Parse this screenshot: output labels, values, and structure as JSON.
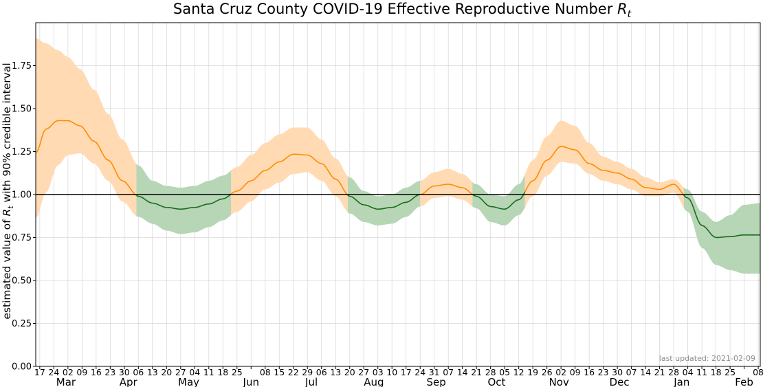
{
  "chart_data": {
    "type": "area",
    "title": "Santa Cruz County COVID-19 Effective Reproductive Number",
    "title_symbol": "R",
    "title_symbol_sub": "t",
    "ylabel_prefix": "estimated value of",
    "ylabel_symbol": "R",
    "ylabel_symbol_sub": "t",
    "ylabel_suffix": "with 90% credible interval",
    "footnote": "last updated: 2021-02-09",
    "ylim": [
      0,
      2.0
    ],
    "yticks": [
      "0.00",
      "0.25",
      "0.50",
      "0.75",
      "1.00",
      "1.25",
      "1.50",
      "1.75"
    ],
    "ytick_values": [
      0,
      0.25,
      0.5,
      0.75,
      1.0,
      1.25,
      1.5,
      1.75
    ],
    "xlim": [
      "2020-02-15",
      "2021-02-09"
    ],
    "reference_line": 1.0,
    "colors": {
      "above_line": "#ff8c00",
      "above_band": "#ffdab3",
      "below_line": "#1a6b1a",
      "below_band": "#b6d6b6",
      "reference": "#000000",
      "grid": "#d9d9d9"
    },
    "grid": true,
    "x_ticks": [
      {
        "date": "2020-02-17",
        "label": "17"
      },
      {
        "date": "2020-02-24",
        "label": "24"
      },
      {
        "date": "2020-03-02",
        "label": "02"
      },
      {
        "date": "2020-03-09",
        "label": "09"
      },
      {
        "date": "2020-03-16",
        "label": "16"
      },
      {
        "date": "2020-03-23",
        "label": "23"
      },
      {
        "date": "2020-03-30",
        "label": "30"
      },
      {
        "date": "2020-04-06",
        "label": "06"
      },
      {
        "date": "2020-04-13",
        "label": "13"
      },
      {
        "date": "2020-04-20",
        "label": "20"
      },
      {
        "date": "2020-04-27",
        "label": "27"
      },
      {
        "date": "2020-05-04",
        "label": "04"
      },
      {
        "date": "2020-05-11",
        "label": "11"
      },
      {
        "date": "2020-05-18",
        "label": "18"
      },
      {
        "date": "2020-05-25",
        "label": "25"
      },
      {
        "date": "2020-06-01",
        "label": ""
      },
      {
        "date": "2020-06-08",
        "label": "08"
      },
      {
        "date": "2020-06-15",
        "label": "15"
      },
      {
        "date": "2020-06-22",
        "label": "22"
      },
      {
        "date": "2020-06-29",
        "label": "29"
      },
      {
        "date": "2020-07-06",
        "label": "06"
      },
      {
        "date": "2020-07-13",
        "label": "13"
      },
      {
        "date": "2020-07-20",
        "label": "20"
      },
      {
        "date": "2020-07-27",
        "label": "27"
      },
      {
        "date": "2020-08-03",
        "label": "03"
      },
      {
        "date": "2020-08-10",
        "label": "10"
      },
      {
        "date": "2020-08-17",
        "label": "17"
      },
      {
        "date": "2020-08-24",
        "label": "24"
      },
      {
        "date": "2020-08-31",
        "label": "31"
      },
      {
        "date": "2020-09-07",
        "label": "07"
      },
      {
        "date": "2020-09-14",
        "label": "14"
      },
      {
        "date": "2020-09-21",
        "label": "21"
      },
      {
        "date": "2020-09-28",
        "label": "28"
      },
      {
        "date": "2020-10-05",
        "label": "05"
      },
      {
        "date": "2020-10-12",
        "label": "12"
      },
      {
        "date": "2020-10-19",
        "label": "19"
      },
      {
        "date": "2020-10-26",
        "label": "26"
      },
      {
        "date": "2020-11-02",
        "label": "02"
      },
      {
        "date": "2020-11-09",
        "label": "09"
      },
      {
        "date": "2020-11-16",
        "label": "16"
      },
      {
        "date": "2020-11-23",
        "label": "23"
      },
      {
        "date": "2020-11-30",
        "label": "30"
      },
      {
        "date": "2020-12-07",
        "label": "07"
      },
      {
        "date": "2020-12-14",
        "label": "14"
      },
      {
        "date": "2020-12-21",
        "label": "21"
      },
      {
        "date": "2020-12-28",
        "label": "28"
      },
      {
        "date": "2021-01-04",
        "label": "04"
      },
      {
        "date": "2021-01-11",
        "label": "11"
      },
      {
        "date": "2021-01-18",
        "label": "18"
      },
      {
        "date": "2021-01-25",
        "label": "25"
      },
      {
        "date": "2021-02-01",
        "label": ""
      },
      {
        "date": "2021-02-08",
        "label": "08"
      }
    ],
    "months": [
      {
        "date": "2020-03-01",
        "label": "Mar"
      },
      {
        "date": "2020-04-01",
        "label": "Apr"
      },
      {
        "date": "2020-05-01",
        "label": "May"
      },
      {
        "date": "2020-06-01",
        "label": "Jun"
      },
      {
        "date": "2020-07-01",
        "label": "Jul"
      },
      {
        "date": "2020-08-01",
        "label": "Aug"
      },
      {
        "date": "2020-09-01",
        "label": "Sep"
      },
      {
        "date": "2020-10-01",
        "label": "Oct"
      },
      {
        "date": "2020-11-01",
        "label": "Nov"
      },
      {
        "date": "2020-12-01",
        "label": "Dec"
      },
      {
        "date": "2021-01-01",
        "label": "Jan"
      },
      {
        "date": "2021-02-01",
        "label": "Feb"
      }
    ],
    "series": [
      {
        "values": [
          {
            "x": "2020-02-15",
            "y": 1.24,
            "lo": 0.86,
            "hi": 1.91
          },
          {
            "x": "2020-02-20",
            "y": 1.38,
            "lo": 1.01,
            "hi": 1.88
          },
          {
            "x": "2020-02-26",
            "y": 1.43,
            "lo": 1.17,
            "hi": 1.84
          },
          {
            "x": "2020-03-02",
            "y": 1.43,
            "lo": 1.23,
            "hi": 1.8
          },
          {
            "x": "2020-03-08",
            "y": 1.4,
            "lo": 1.24,
            "hi": 1.73
          },
          {
            "x": "2020-03-15",
            "y": 1.31,
            "lo": 1.18,
            "hi": 1.61
          },
          {
            "x": "2020-03-22",
            "y": 1.2,
            "lo": 1.08,
            "hi": 1.47
          },
          {
            "x": "2020-03-29",
            "y": 1.08,
            "lo": 0.96,
            "hi": 1.32
          },
          {
            "x": "2020-04-06",
            "y": 0.99,
            "lo": 0.87,
            "hi": 1.17
          },
          {
            "x": "2020-04-13",
            "y": 0.95,
            "lo": 0.83,
            "hi": 1.08
          },
          {
            "x": "2020-04-20",
            "y": 0.925,
            "lo": 0.79,
            "hi": 1.05
          },
          {
            "x": "2020-04-27",
            "y": 0.915,
            "lo": 0.77,
            "hi": 1.04
          },
          {
            "x": "2020-05-04",
            "y": 0.925,
            "lo": 0.78,
            "hi": 1.05
          },
          {
            "x": "2020-05-11",
            "y": 0.945,
            "lo": 0.81,
            "hi": 1.08
          },
          {
            "x": "2020-05-18",
            "y": 0.975,
            "lo": 0.85,
            "hi": 1.11
          },
          {
            "x": "2020-05-25",
            "y": 1.02,
            "lo": 0.9,
            "hi": 1.16
          },
          {
            "x": "2020-06-01",
            "y": 1.08,
            "lo": 0.96,
            "hi": 1.23
          },
          {
            "x": "2020-06-08",
            "y": 1.14,
            "lo": 1.03,
            "hi": 1.3
          },
          {
            "x": "2020-06-15",
            "y": 1.19,
            "lo": 1.07,
            "hi": 1.35
          },
          {
            "x": "2020-06-22",
            "y": 1.235,
            "lo": 1.12,
            "hi": 1.39
          },
          {
            "x": "2020-06-29",
            "y": 1.23,
            "lo": 1.13,
            "hi": 1.39
          },
          {
            "x": "2020-07-06",
            "y": 1.18,
            "lo": 1.08,
            "hi": 1.32
          },
          {
            "x": "2020-07-13",
            "y": 1.09,
            "lo": 0.99,
            "hi": 1.21
          },
          {
            "x": "2020-07-20",
            "y": 0.99,
            "lo": 0.89,
            "hi": 1.1
          },
          {
            "x": "2020-07-27",
            "y": 0.94,
            "lo": 0.84,
            "hi": 1.02
          },
          {
            "x": "2020-08-03",
            "y": 0.915,
            "lo": 0.82,
            "hi": 0.99
          },
          {
            "x": "2020-08-10",
            "y": 0.925,
            "lo": 0.83,
            "hi": 1.0
          },
          {
            "x": "2020-08-17",
            "y": 0.955,
            "lo": 0.87,
            "hi": 1.04
          },
          {
            "x": "2020-08-24",
            "y": 1.0,
            "lo": 0.93,
            "hi": 1.08
          },
          {
            "x": "2020-08-31",
            "y": 1.05,
            "lo": 0.98,
            "hi": 1.13
          },
          {
            "x": "2020-09-07",
            "y": 1.06,
            "lo": 0.99,
            "hi": 1.15
          },
          {
            "x": "2020-09-14",
            "y": 1.04,
            "lo": 0.97,
            "hi": 1.12
          },
          {
            "x": "2020-09-21",
            "y": 0.99,
            "lo": 0.92,
            "hi": 1.06
          },
          {
            "x": "2020-09-28",
            "y": 0.93,
            "lo": 0.84,
            "hi": 1.0
          },
          {
            "x": "2020-10-05",
            "y": 0.915,
            "lo": 0.82,
            "hi": 0.99
          },
          {
            "x": "2020-10-12",
            "y": 0.97,
            "lo": 0.88,
            "hi": 1.06
          },
          {
            "x": "2020-10-19",
            "y": 1.08,
            "lo": 0.99,
            "hi": 1.2
          },
          {
            "x": "2020-10-26",
            "y": 1.2,
            "lo": 1.11,
            "hi": 1.34
          },
          {
            "x": "2020-11-02",
            "y": 1.28,
            "lo": 1.19,
            "hi": 1.43
          },
          {
            "x": "2020-11-09",
            "y": 1.26,
            "lo": 1.18,
            "hi": 1.4
          },
          {
            "x": "2020-11-16",
            "y": 1.18,
            "lo": 1.12,
            "hi": 1.3
          },
          {
            "x": "2020-11-23",
            "y": 1.14,
            "lo": 1.08,
            "hi": 1.22
          },
          {
            "x": "2020-11-30",
            "y": 1.125,
            "lo": 1.06,
            "hi": 1.19
          },
          {
            "x": "2020-12-07",
            "y": 1.09,
            "lo": 1.03,
            "hi": 1.15
          },
          {
            "x": "2020-12-14",
            "y": 1.04,
            "lo": 0.99,
            "hi": 1.1
          },
          {
            "x": "2020-12-21",
            "y": 1.03,
            "lo": 0.99,
            "hi": 1.07
          },
          {
            "x": "2020-12-28",
            "y": 1.06,
            "lo": 1.01,
            "hi": 1.09
          },
          {
            "x": "2021-01-04",
            "y": 0.98,
            "lo": 0.9,
            "hi": 1.03
          },
          {
            "x": "2021-01-11",
            "y": 0.82,
            "lo": 0.69,
            "hi": 0.9
          },
          {
            "x": "2021-01-18",
            "y": 0.75,
            "lo": 0.59,
            "hi": 0.84
          },
          {
            "x": "2021-01-25",
            "y": 0.755,
            "lo": 0.56,
            "hi": 0.88
          },
          {
            "x": "2021-02-01",
            "y": 0.765,
            "lo": 0.54,
            "hi": 0.94
          },
          {
            "x": "2021-02-09",
            "y": 0.765,
            "lo": 0.54,
            "hi": 0.95
          }
        ]
      }
    ]
  }
}
